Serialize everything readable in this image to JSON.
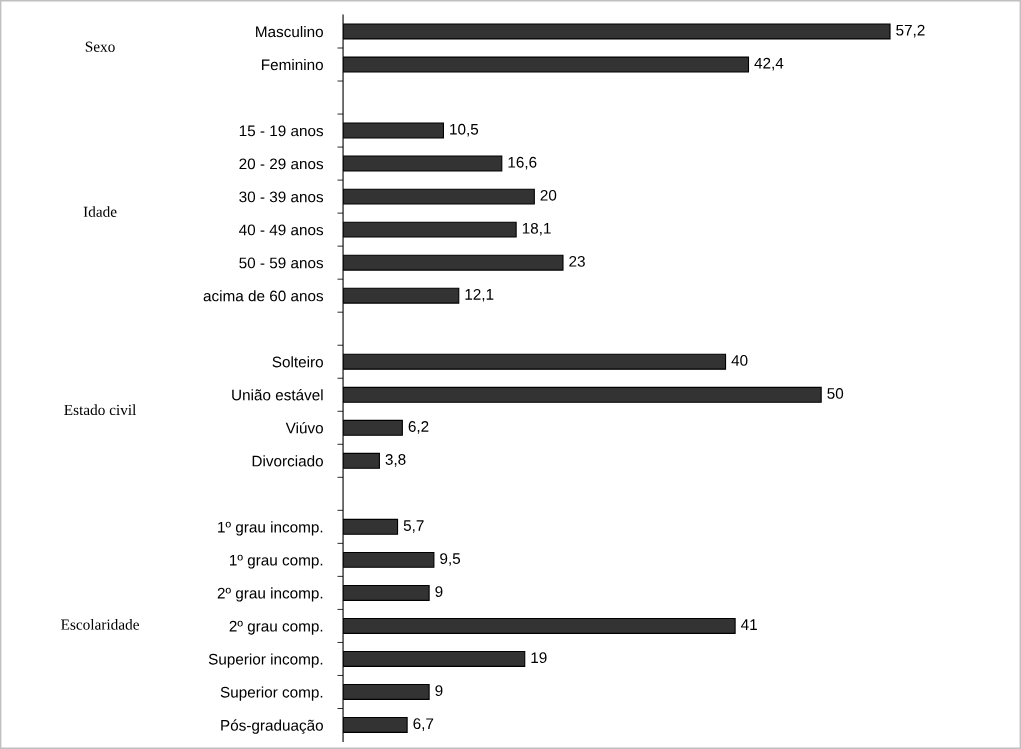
{
  "chart_data": {
    "type": "bar",
    "orientation": "horizontal",
    "color": "#333333",
    "categories": [
      "Masculino",
      "Feminino",
      null,
      "15 - 19 anos",
      "20 - 29 anos",
      "30 - 39 anos",
      "40 - 49 anos",
      "50 - 59 anos",
      "acima de 60 anos",
      null,
      "Solteiro",
      "União estável",
      "Viúvo",
      "Divorciado",
      null,
      "1º grau incomp.",
      "1º grau comp.",
      "2º grau incomp.",
      "2º grau comp.",
      "Superior incomp.",
      "Superior comp.",
      "Pós-graduação"
    ],
    "values": [
      57.2,
      42.4,
      null,
      10.5,
      16.6,
      20,
      18.1,
      23,
      12.1,
      null,
      40,
      50,
      6.2,
      3.8,
      null,
      5.7,
      9.5,
      9,
      41,
      19,
      9,
      6.7
    ],
    "value_labels": [
      "57,2",
      "42,4",
      null,
      "10,5",
      "16,6",
      "20",
      "18,1",
      "23",
      "12,1",
      null,
      "40",
      "50",
      "6,2",
      "3,8",
      null,
      "5,7",
      "9,5",
      "9",
      "41",
      "19",
      "9",
      "6,7"
    ],
    "annotations": [
      "Sexo",
      "Idade",
      "Estado civil",
      "Escolaridade"
    ],
    "grid": false,
    "legend": false,
    "tick_labels": "y"
  }
}
